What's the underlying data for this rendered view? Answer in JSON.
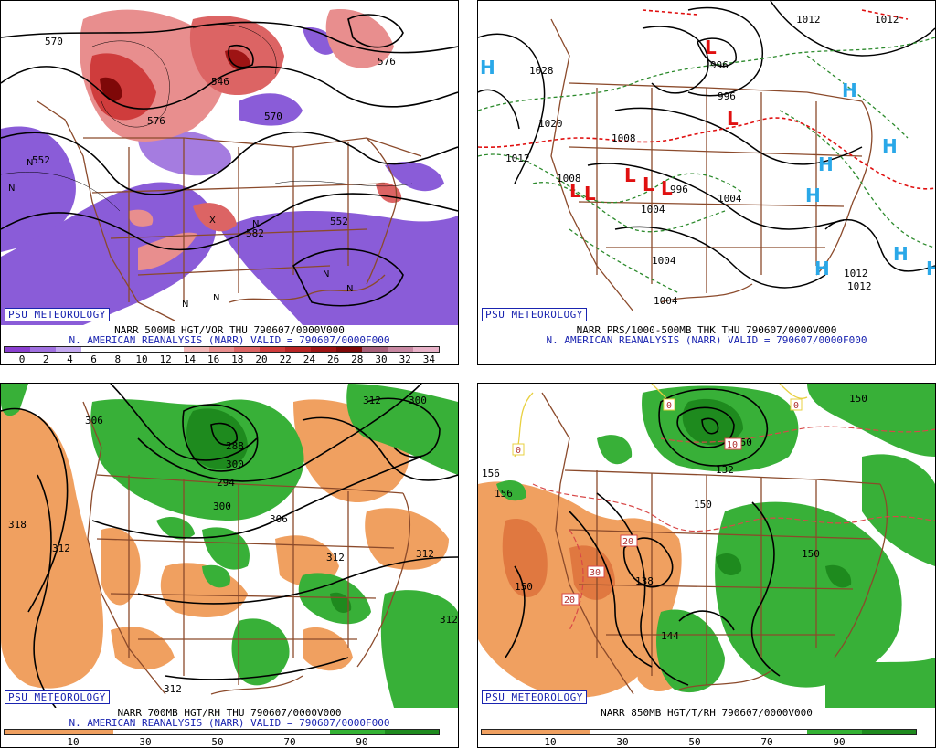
{
  "badge": "PSU METEOROLOGY",
  "panels": [
    {
      "title1": "NARR 500MB HGT/VOR THU 790607/0000V000",
      "title2": "N. AMERICAN REANALYSIS (NARR) VALID = 790607/0000F000",
      "contour_labels": [
        "570",
        "552",
        "546",
        "582",
        "570",
        "576",
        "576",
        "552"
      ],
      "vort_labels": [
        "N",
        "N",
        "N",
        "N",
        "N",
        "N",
        "N",
        "X"
      ],
      "colorbar": {
        "colors": [
          "#8a3fd0",
          "#a070e0",
          "#c3a8f0",
          "#ffffff",
          "#ffffff",
          "#ffffff",
          "#ffffff",
          "#f2b7b7",
          "#e88e8e",
          "#dc6464",
          "#cf3c3c",
          "#b82424",
          "#9e1414",
          "#7e0808",
          "#a8607a",
          "#c888a2",
          "#e8b2c8"
        ],
        "ticks": [
          "0",
          "2",
          "4",
          "6",
          "8",
          "10",
          "12",
          "14",
          "16",
          "18",
          "20",
          "22",
          "24",
          "26",
          "28",
          "30",
          "32",
          "34"
        ]
      }
    },
    {
      "title1": "NARR PRS/1000-500MB THK THU 790607/0000V000",
      "title2": "N. AMERICAN REANALYSIS (NARR) VALID = 790607/0000F000",
      "contour_labels": [
        "1028",
        "1020",
        "1008",
        "1012",
        "1008",
        "996",
        "1004",
        "1012",
        "1004",
        "1012",
        "1012",
        "1012",
        "1004",
        "1004",
        "996",
        "996"
      ],
      "highs": [
        "H",
        "H",
        "H",
        "H",
        "H",
        "H",
        "H",
        "H"
      ],
      "lows": [
        "L",
        "L",
        "L",
        "L",
        "L",
        "L",
        "L"
      ]
    },
    {
      "title1": "NARR 700MB HGT/RH THU 790607/0000V000",
      "title2": "N. AMERICAN REANALYSIS (NARR) VALID = 790607/0000F000",
      "contour_labels": [
        "306",
        "300",
        "300",
        "288",
        "294",
        "300",
        "306",
        "318",
        "312",
        "312",
        "312",
        "312",
        "312",
        "312"
      ],
      "colorbar": {
        "colors": [
          "#f0a060",
          "#f0a060",
          "#ffffff",
          "#ffffff",
          "#ffffff",
          "#ffffff",
          "#34b234",
          "#1e8a1e"
        ],
        "ticks": [
          "10",
          "30",
          "50",
          "70",
          "90"
        ]
      }
    },
    {
      "title1": "NARR 850MB HGT/T/RH 790607/0000V000",
      "title2": "",
      "contour_labels": [
        "132",
        "150",
        "150",
        "156",
        "150",
        "138",
        "144",
        "150",
        "150",
        "156"
      ],
      "temp_labels": [
        "0",
        "0",
        "0",
        "10",
        "20",
        "30",
        "20"
      ],
      "colorbar": {
        "colors": [
          "#f0a060",
          "#f0a060",
          "#ffffff",
          "#ffffff",
          "#ffffff",
          "#ffffff",
          "#34b234",
          "#1e8a1e"
        ],
        "ticks": [
          "10",
          "30",
          "50",
          "70",
          "90"
        ]
      }
    }
  ],
  "colors": {
    "badge_blue": "#1a24b0",
    "borders": "#8b4a2b",
    "vort_purple": "#8a5cd8",
    "vort_red": "#d84848",
    "rh_green": "#38b038",
    "rh_orange": "#f0a060",
    "high_blue": "#2aa8e8",
    "low_red": "#e01010",
    "thk_green": "#2c8a2c"
  }
}
